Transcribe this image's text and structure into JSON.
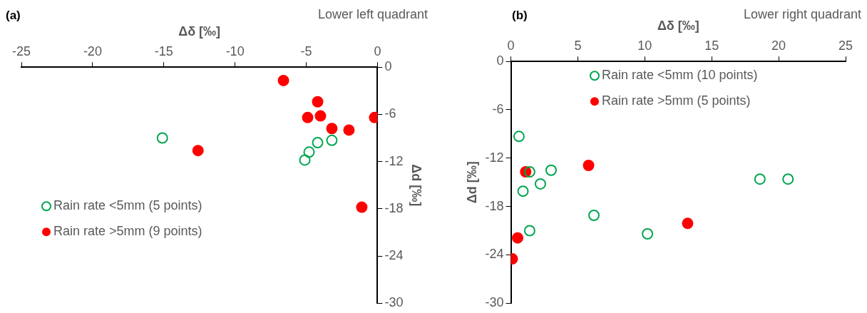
{
  "chart_data": [
    {
      "type": "scatter",
      "title": "(a)",
      "subtitle": "Lower left quadrant",
      "xlabel": "Δδ [‰]",
      "ylabel": "Δd [‰]",
      "xlim": [
        -25,
        0
      ],
      "xticks": [
        -25,
        -20,
        -15,
        -10,
        -5,
        0
      ],
      "ylim": [
        -30,
        0
      ],
      "yticks": [
        -30,
        -24,
        -18,
        -12,
        -6,
        0
      ],
      "grid": false,
      "legend": "bottom left",
      "marker": "circle",
      "series": [
        {
          "name": "Rain rate <5mm (5 points)",
          "color": "#00a650",
          "x": [
            -15.1,
            -3.2,
            -4.2,
            -4.8,
            -5.1
          ],
          "values": [
            -9.0,
            -9.3,
            -9.6,
            -10.8,
            -11.8
          ]
        },
        {
          "name": "Rain rate >5mm (9 points)",
          "color": "#ff0000",
          "x": [
            -6.6,
            -4.2,
            -4.9,
            -4.0,
            -0.2,
            -3.2,
            -2.0,
            -12.6,
            -1.1
          ],
          "values": [
            -1.7,
            -4.4,
            -6.4,
            -6.2,
            -6.4,
            -7.8,
            -8.0,
            -10.6,
            -17.8
          ]
        }
      ]
    },
    {
      "type": "scatter",
      "title": "(b)",
      "subtitle": "Lower right quadrant",
      "xlabel": "Δδ [‰]",
      "ylabel": "Δd [‰]",
      "xlim": [
        0,
        25
      ],
      "xticks": [
        0,
        5,
        10,
        15,
        20,
        25
      ],
      "ylim": [
        -30,
        0
      ],
      "yticks": [
        -30,
        -24,
        -18,
        -12,
        -6,
        0
      ],
      "grid": false,
      "legend": "top",
      "marker": "circle",
      "series": [
        {
          "name": "Rain rate <5mm (10 points)",
          "color": "#00a650",
          "x": [
            0.6,
            1.4,
            3.0,
            2.2,
            0.9,
            6.2,
            1.4,
            10.2,
            18.6,
            20.7
          ],
          "values": [
            -9.3,
            -13.7,
            -13.5,
            -15.2,
            -16.1,
            -19.1,
            -21.0,
            -21.4,
            -14.6,
            -14.6
          ]
        },
        {
          "name": "Rain rate >5mm (5 points)",
          "color": "#ff0000",
          "x": [
            1.1,
            5.8,
            13.2,
            0.5,
            0.1
          ],
          "values": [
            -13.7,
            -12.9,
            -20.1,
            -21.9,
            -24.5
          ]
        }
      ]
    }
  ]
}
